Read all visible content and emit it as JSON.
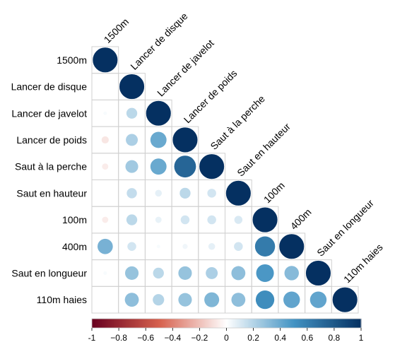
{
  "chart_data": {
    "type": "heatmap",
    "subtype": "correlation-matrix-lower-circles",
    "variables": [
      "1500m",
      "Lancer de disque",
      "Lancer de javelot",
      "Lancer de poids",
      "Saut à la perche",
      "Saut en hauteur",
      "100m",
      "400m",
      "Saut en longueur",
      "110m haies"
    ],
    "matrix": [
      [
        1.0,
        null,
        null,
        null,
        null,
        null,
        null,
        null,
        null,
        null
      ],
      [
        0.0,
        1.0,
        null,
        null,
        null,
        null,
        null,
        null,
        null,
        null
      ],
      [
        0.02,
        0.18,
        1.0,
        null,
        null,
        null,
        null,
        null,
        null,
        null
      ],
      [
        -0.08,
        0.22,
        0.4,
        1.0,
        null,
        null,
        null,
        null,
        null,
        null
      ],
      [
        -0.06,
        0.25,
        0.4,
        0.73,
        1.0,
        null,
        null,
        null,
        null,
        null
      ],
      [
        0.0,
        0.16,
        0.07,
        0.18,
        0.12,
        1.0,
        null,
        null,
        null,
        null
      ],
      [
        -0.06,
        0.18,
        0.06,
        0.12,
        0.12,
        0.1,
        1.0,
        null,
        null,
        null
      ],
      [
        0.36,
        0.12,
        0.02,
        0.04,
        0.07,
        0.12,
        0.62,
        1.0,
        null,
        null
      ],
      [
        0.02,
        0.28,
        0.18,
        0.28,
        0.22,
        0.3,
        0.48,
        0.32,
        1.0,
        null
      ],
      [
        0.0,
        0.3,
        0.2,
        0.28,
        0.34,
        0.3,
        0.53,
        0.42,
        0.42,
        1.0
      ]
    ],
    "colorbar": {
      "ticks": [
        "-1",
        "−0.8",
        "−0.6",
        "−0.4",
        "−0.2",
        "0",
        "0.2",
        "0.4",
        "0.6",
        "0.8",
        "1"
      ],
      "range": [
        -1,
        1
      ]
    },
    "palette": {
      "negative_end": "#67001f",
      "negative_mid": "#d6604d",
      "neutral": "#ffffff",
      "positive_mid": "#4393c3",
      "positive_end": "#053061"
    },
    "grid_color": "#d0d0d0"
  }
}
